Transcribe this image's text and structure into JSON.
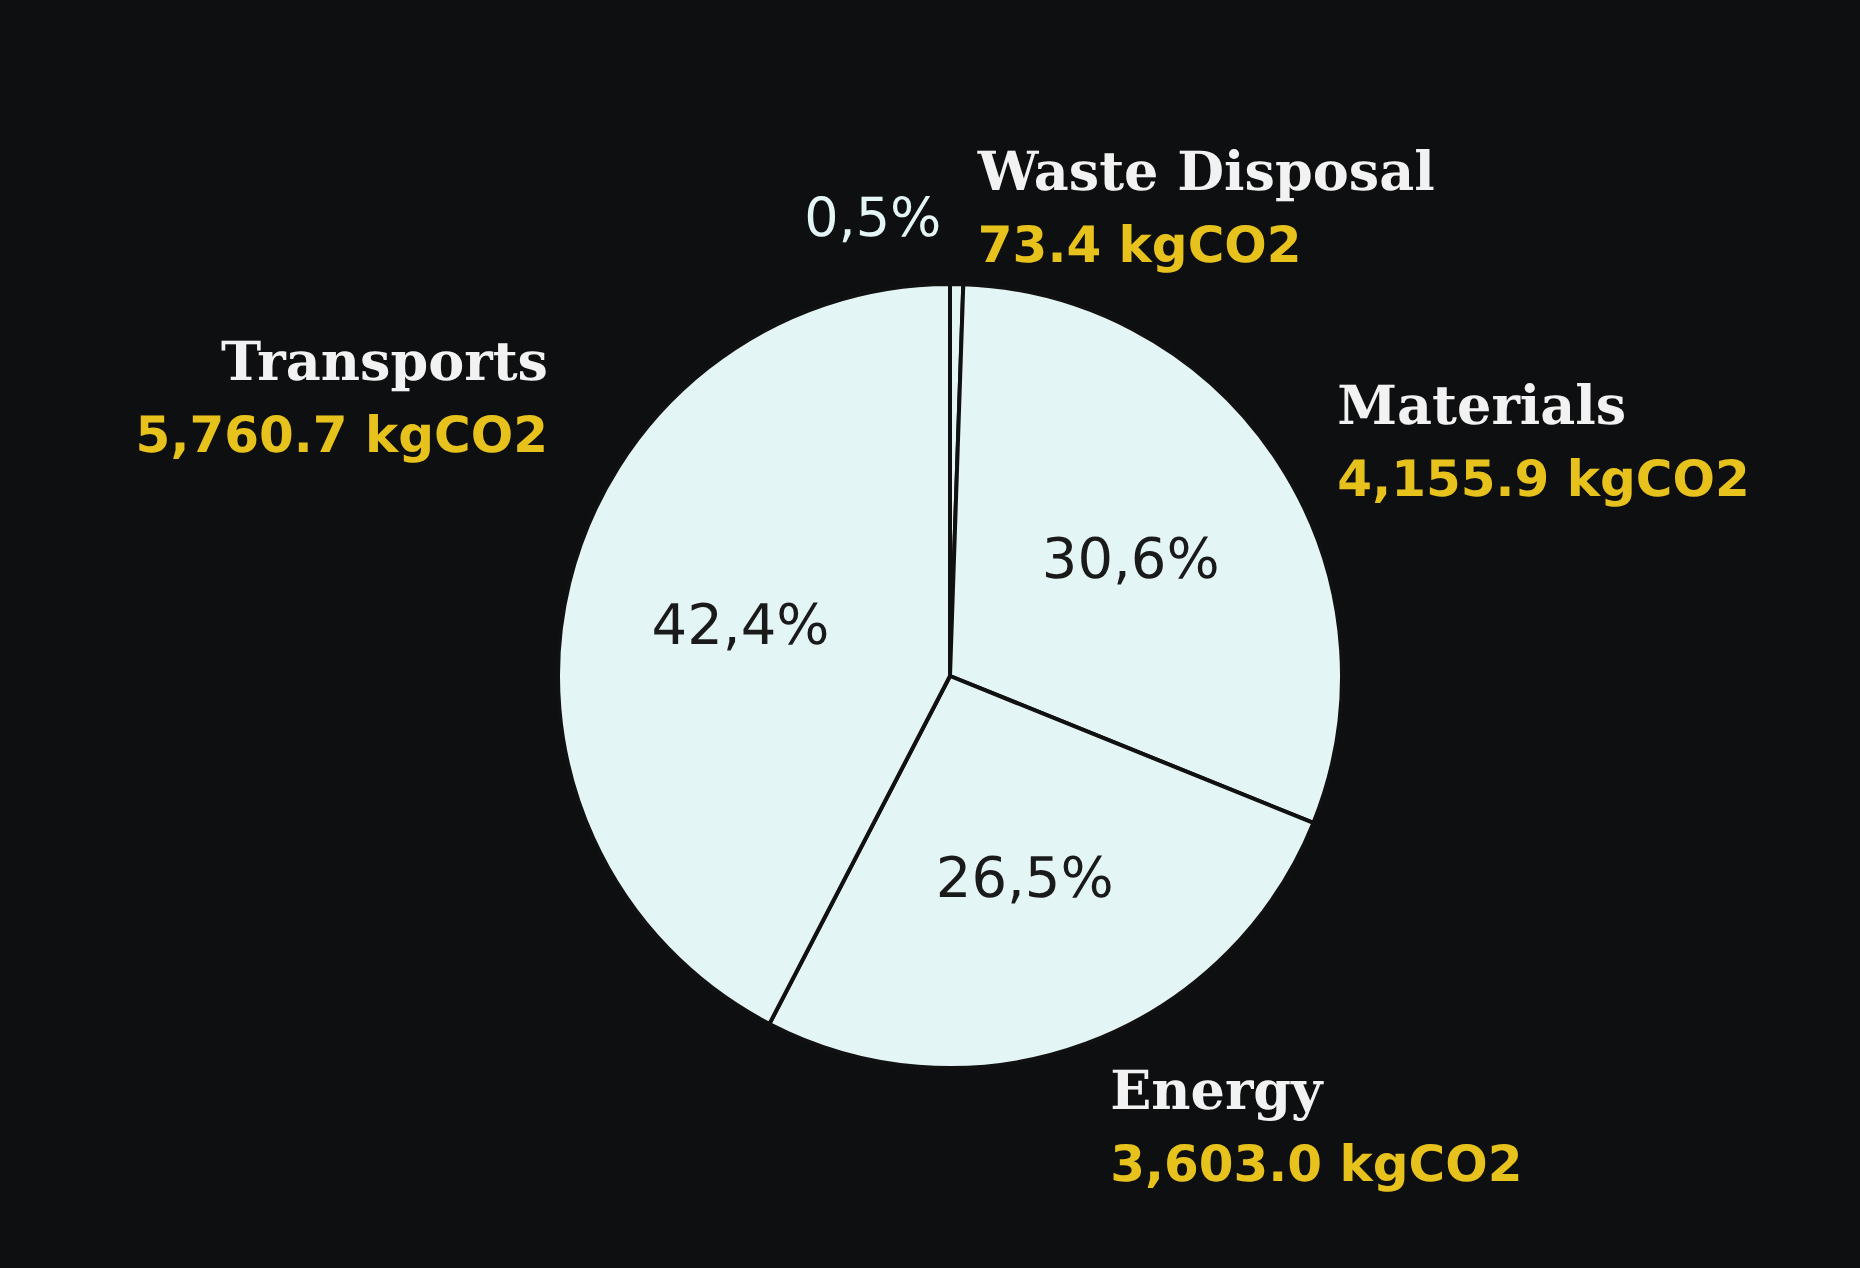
{
  "chart_data": {
    "type": "pie",
    "categories": [
      "Waste Disposal",
      "Materials",
      "Energy",
      "Transports"
    ],
    "values": [
      73.4,
      4155.9,
      3603.0,
      5760.7
    ],
    "value_labels": [
      "73.4 kgCO2",
      "4,155.9 kgCO2",
      "3,603.0 kgCO2",
      "5,760.7 kgCO2"
    ],
    "colors": [
      "#e4f5f5",
      "#e4f5f5",
      "#e4f5f5",
      "#e4f5f5"
    ],
    "annotations": [
      "0,5%",
      "30,6%",
      "26,5%",
      "42,4%"
    ],
    "legend": false
  }
}
